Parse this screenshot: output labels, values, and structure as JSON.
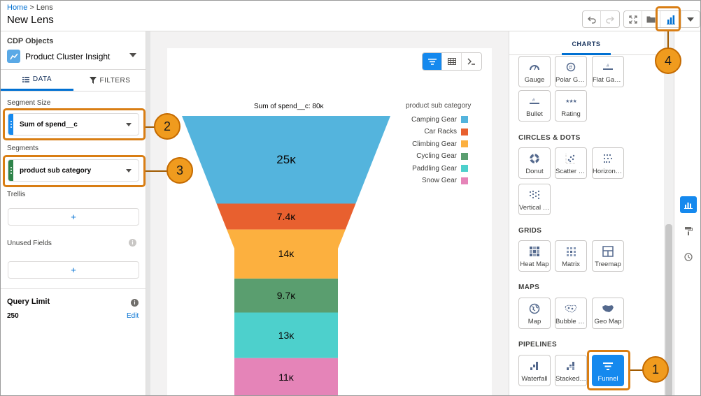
{
  "header": {
    "breadcrumb_home": "Home",
    "breadcrumb_sep": ">",
    "breadcrumb_current": "Lens",
    "title": "New Lens",
    "icons": [
      "undo-icon",
      "redo-icon",
      "fullscreen-icon",
      "folder-icon",
      "chart-icon",
      "caret-down-icon"
    ]
  },
  "left_panel": {
    "source_title": "CDP Objects",
    "source_name": "Product Cluster Insight",
    "tabs": {
      "data": "DATA",
      "filters": "FILTERS"
    },
    "segment_size_label": "Segment Size",
    "segment_size_value": "Sum of spend__c",
    "segments_label": "Segments",
    "segments_value": "product sub category",
    "trellis_label": "Trellis",
    "unused_fields_label": "Unused Fields",
    "add_symbol": "+",
    "query_limit_label": "Query Limit",
    "query_limit_value": "250",
    "edit_label": "Edit",
    "colors": {
      "measure": "#1589ee",
      "dimension": "#2e844a"
    }
  },
  "chart_data": {
    "type": "funnel",
    "title": "Sum of spend__c: 80ᴋ",
    "legend_title": "product sub category",
    "legend_position": "top-right",
    "categories": [
      "Camping Gear",
      "Car Racks",
      "Climbing Gear",
      "Cycling Gear",
      "Paddling Gear",
      "Snow Gear"
    ],
    "values": [
      25000,
      7400,
      14000,
      9700,
      13000,
      11000
    ],
    "value_labels": [
      "25ᴋ",
      "7.4ᴋ",
      "14ᴋ",
      "9.7ᴋ",
      "13ᴋ",
      "11ᴋ"
    ],
    "colors": [
      "#54b4dd",
      "#e8602f",
      "#fcb03f",
      "#5a9e6f",
      "#4dd0cc",
      "#e584b8"
    ]
  },
  "right_panel": {
    "tab_label": "CHARTS",
    "sections": {
      "top": [
        "Gauge",
        "Polar Gauge",
        "Flat Gauge",
        "Bullet",
        "Rating"
      ],
      "circles_title": "CIRCLES & DOTS",
      "circles": [
        "Donut",
        "Scatter Plot",
        "Horizontal Dot",
        "Vertical Dot"
      ],
      "grids_title": "GRIDS",
      "grids": [
        "Heat Map",
        "Matrix",
        "Treemap"
      ],
      "maps_title": "MAPS",
      "maps": [
        "Map",
        "Bubble Map",
        "Geo Map"
      ],
      "pipelines_title": "PIPELINES",
      "pipelines": [
        "Waterfall",
        "Stacked Waterfall",
        "Funnel"
      ]
    },
    "selected": "Funnel"
  },
  "rail": {
    "icons": [
      "chart-icon",
      "paint-roller-icon",
      "clock-icon"
    ]
  },
  "callouts": [
    "1",
    "2",
    "3",
    "4"
  ],
  "accent": "#d97e14"
}
